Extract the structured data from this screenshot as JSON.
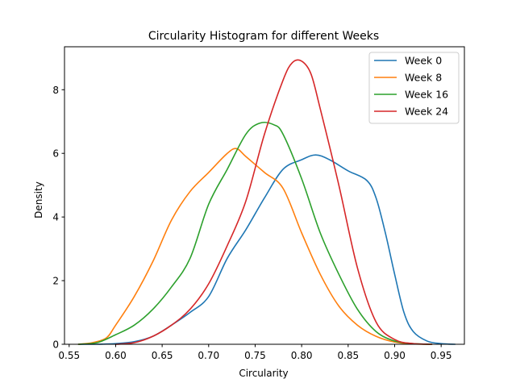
{
  "chart_data": {
    "type": "line",
    "title": "Circularity Histogram for different Weeks",
    "xlabel": "Circularity",
    "ylabel": "Density",
    "xlim": [
      0.545,
      0.975
    ],
    "ylim": [
      0,
      9.35
    ],
    "xticks": [
      0.55,
      0.6,
      0.65,
      0.7,
      0.75,
      0.8,
      0.85,
      0.9,
      0.95
    ],
    "xtick_labels": [
      "0.55",
      "0.60",
      "0.65",
      "0.70",
      "0.75",
      "0.80",
      "0.85",
      "0.90",
      "0.95"
    ],
    "yticks": [
      0,
      2,
      4,
      6,
      8
    ],
    "ytick_labels": [
      "0",
      "2",
      "4",
      "6",
      "8"
    ],
    "grid": false,
    "legend_position": "top-right",
    "series": [
      {
        "name": "Week 0",
        "color": "#1f77b4",
        "x": [
          0.56,
          0.58,
          0.6,
          0.62,
          0.64,
          0.66,
          0.68,
          0.7,
          0.72,
          0.74,
          0.76,
          0.78,
          0.8,
          0.815,
          0.83,
          0.85,
          0.87,
          0.88,
          0.89,
          0.9,
          0.91,
          0.92,
          0.935,
          0.95,
          0.965
        ],
        "y": [
          0.0,
          0.0,
          0.02,
          0.08,
          0.25,
          0.6,
          1.0,
          1.5,
          2.7,
          3.6,
          4.6,
          5.5,
          5.8,
          5.95,
          5.8,
          5.45,
          5.15,
          4.6,
          3.5,
          2.2,
          1.0,
          0.4,
          0.1,
          0.02,
          0.0
        ]
      },
      {
        "name": "Week 8",
        "color": "#ff7f0e",
        "x": [
          0.56,
          0.575,
          0.59,
          0.6,
          0.62,
          0.64,
          0.66,
          0.68,
          0.7,
          0.72,
          0.73,
          0.74,
          0.76,
          0.78,
          0.8,
          0.82,
          0.84,
          0.86,
          0.88,
          0.9,
          0.92,
          0.94
        ],
        "y": [
          0.0,
          0.05,
          0.2,
          0.6,
          1.5,
          2.6,
          3.9,
          4.8,
          5.4,
          6.0,
          6.15,
          5.9,
          5.4,
          4.9,
          3.5,
          2.2,
          1.2,
          0.6,
          0.25,
          0.07,
          0.01,
          0.0
        ]
      },
      {
        "name": "Week 16",
        "color": "#2ca02c",
        "x": [
          0.56,
          0.58,
          0.6,
          0.62,
          0.64,
          0.66,
          0.68,
          0.7,
          0.72,
          0.74,
          0.755,
          0.77,
          0.78,
          0.8,
          0.82,
          0.84,
          0.86,
          0.88,
          0.9,
          0.92,
          0.94
        ],
        "y": [
          0.0,
          0.05,
          0.3,
          0.6,
          1.1,
          1.8,
          2.7,
          4.4,
          5.5,
          6.6,
          6.95,
          6.9,
          6.6,
          5.2,
          3.5,
          2.2,
          1.1,
          0.4,
          0.1,
          0.02,
          0.0
        ]
      },
      {
        "name": "Week 24",
        "color": "#d62728",
        "x": [
          0.6,
          0.62,
          0.64,
          0.66,
          0.68,
          0.7,
          0.72,
          0.74,
          0.76,
          0.78,
          0.79,
          0.8,
          0.81,
          0.82,
          0.84,
          0.86,
          0.88,
          0.9,
          0.92,
          0.94
        ],
        "y": [
          0.0,
          0.05,
          0.25,
          0.6,
          1.1,
          1.9,
          3.1,
          4.5,
          6.6,
          8.3,
          8.85,
          8.9,
          8.5,
          7.4,
          5.0,
          2.4,
          0.7,
          0.15,
          0.02,
          0.0
        ]
      }
    ]
  }
}
